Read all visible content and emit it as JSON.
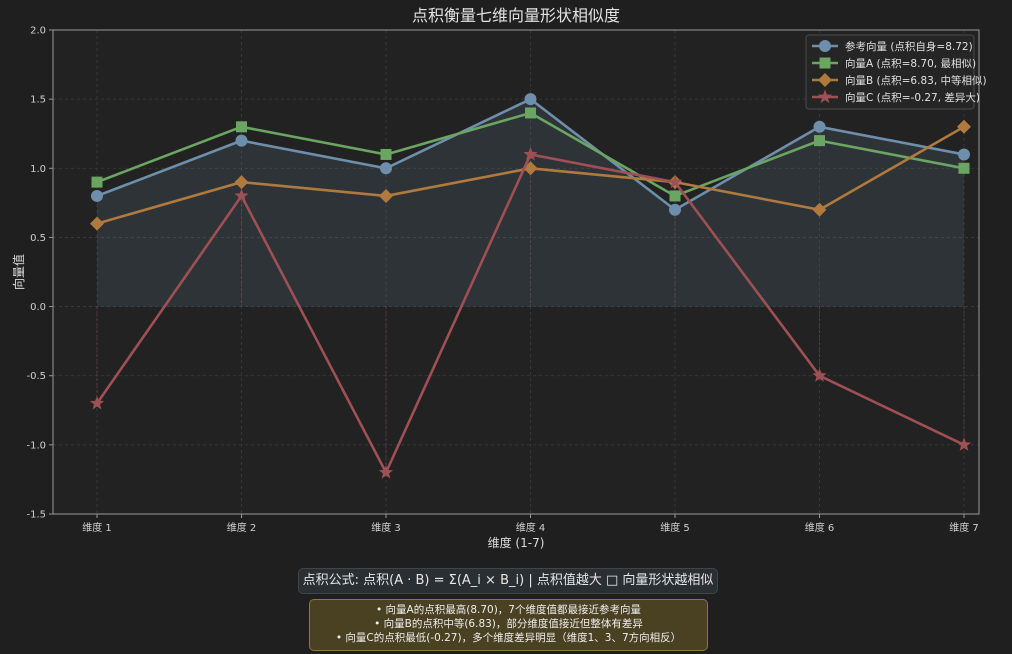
{
  "chart_data": {
    "type": "line",
    "title": "点积衡量七维向量形状相似度",
    "xlabel": "维度 (1-7)",
    "ylabel": "向量值",
    "categories": [
      "维度 1",
      "维度 2",
      "维度 3",
      "维度 4",
      "维度 5",
      "维度 6",
      "维度 7"
    ],
    "ylim": [
      -1.5,
      2.0
    ],
    "yticks": [
      "-1.5",
      "-1.0",
      "-0.5",
      "0.0",
      "0.5",
      "1.0",
      "1.5",
      "2.0"
    ],
    "grid": true,
    "legend_position": "top-right",
    "series": [
      {
        "name": "参考向量 (点积自身=8.72)",
        "values": [
          0.8,
          1.2,
          1.0,
          1.5,
          0.7,
          1.3,
          1.1
        ],
        "color": "#6e8fab",
        "marker": "circle",
        "fill": true
      },
      {
        "name": "向量A (点积=8.70, 最相似)",
        "values": [
          0.9,
          1.3,
          1.1,
          1.4,
          0.8,
          1.2,
          1.0
        ],
        "color": "#6aa562",
        "marker": "square"
      },
      {
        "name": "向量B (点积=6.83, 中等相似)",
        "values": [
          0.6,
          0.9,
          0.8,
          1.0,
          0.9,
          0.7,
          1.3
        ],
        "color": "#b07a3f",
        "marker": "diamond"
      },
      {
        "name": "向量C (点积=-0.27, 差异大)",
        "values": [
          -0.7,
          0.8,
          -1.2,
          1.1,
          0.9,
          -0.5,
          -1.0
        ],
        "color": "#9e5054",
        "marker": "star"
      }
    ]
  },
  "formula": "点积公式: 点积(A · B) = Σ(A_i × B_i) | 点积值越大 □ 向量形状越相似",
  "notes": [
    "• 向量A的点积最高(8.70)，7个维度值都最接近参考向量",
    "• 向量B的点积中等(6.83)，部分维度值接近但整体有差异",
    "• 向量C的点积最低(-0.27)，多个维度差异明显（维度1、3、7方向相反）"
  ]
}
